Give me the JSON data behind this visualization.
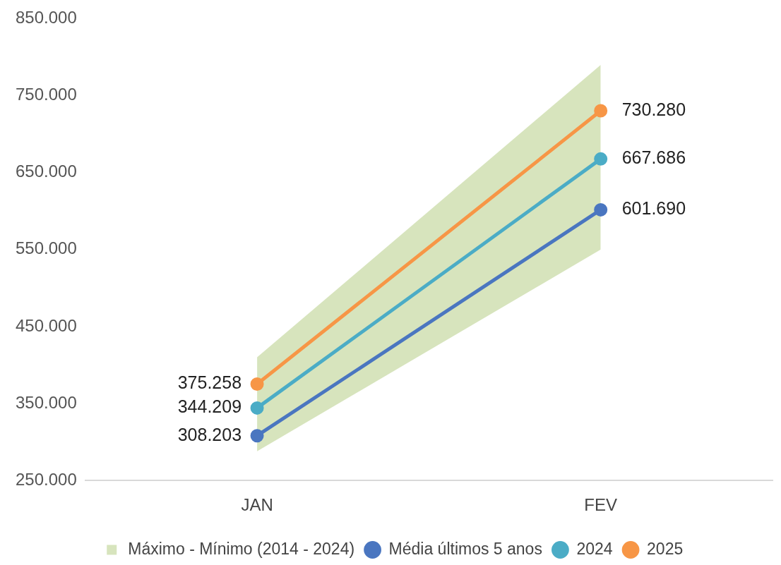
{
  "chart_data": {
    "type": "line",
    "categories": [
      "JAN",
      "FEV"
    ],
    "series": [
      {
        "name": "Máximo - Mínimo (2014 - 2024)",
        "type": "area",
        "color": "#d7e4bd",
        "marker": "none",
        "values": [
          null,
          null
        ],
        "lower": [
          288000,
          550000
        ],
        "upper": [
          410000,
          790000
        ]
      },
      {
        "name": "Média últimos 5 anos",
        "type": "line",
        "marker": "circle",
        "color": "#4a76c0",
        "values": [
          308203,
          601690
        ],
        "value_labels": [
          "308.203",
          "601.690"
        ]
      },
      {
        "name": "2024",
        "type": "line",
        "marker": "circle",
        "color": "#4bacc6",
        "values": [
          344209,
          667686
        ],
        "value_labels": [
          "344.209",
          "667.686"
        ]
      },
      {
        "name": "2025",
        "type": "line",
        "marker": "circle",
        "color": "#f79646",
        "values": [
          375258,
          730280
        ],
        "value_labels": [
          "375.258",
          "730.280"
        ]
      }
    ],
    "ylim": [
      250000,
      850000
    ],
    "yticks": [
      {
        "value": 250000,
        "label": "250.000"
      },
      {
        "value": 350000,
        "label": "350.000"
      },
      {
        "value": 450000,
        "label": "450.000"
      },
      {
        "value": 550000,
        "label": "550.000"
      },
      {
        "value": 650000,
        "label": "650.000"
      },
      {
        "value": 750000,
        "label": "750.000"
      },
      {
        "value": 850000,
        "label": "850.000"
      }
    ],
    "grid": false,
    "legend": "bottom",
    "line_style": "solid"
  }
}
